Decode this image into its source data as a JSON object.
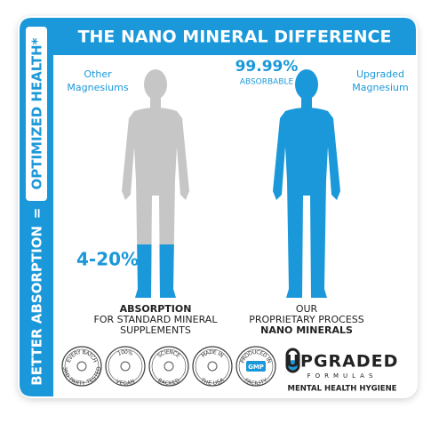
{
  "sidebar": {
    "left": "BETTER ABSORPTION",
    "equals": "=",
    "right": "OPTIMIZED HEALTH*"
  },
  "title": "THE NANO MINERAL DIFFERENCE",
  "left_figure": {
    "label": [
      "Other",
      "Magnesiums"
    ],
    "stat": "4-20%",
    "caption": [
      "ABSORPTION",
      "FOR STANDARD MINERAL",
      "SUPPLEMENTS"
    ]
  },
  "right_figure": {
    "stat": "99.99%",
    "stat_note": "ABSORBABLE",
    "label": [
      "Upgraded",
      "Magnesium"
    ],
    "caption": [
      "OUR",
      "PROPRIETARY PROCESS",
      "NANO MINERALS"
    ]
  },
  "badges": [
    {
      "top": "EVERY BATCH",
      "bottom": "3RD PARTY TESTED"
    },
    {
      "top": "100%",
      "bottom": "VEGAN"
    },
    {
      "top": "SCIENCE",
      "bottom": "BACKED"
    },
    {
      "top": "MADE IN",
      "bottom": "THE USA"
    },
    {
      "top": "PRODUCED IN",
      "middle": "GMP",
      "bottom": "FACILITY"
    }
  ],
  "brand": {
    "name": "UPGRADED",
    "sub": "FORMULAS",
    "tagline": "MENTAL HEALTH HYGIENE"
  }
}
